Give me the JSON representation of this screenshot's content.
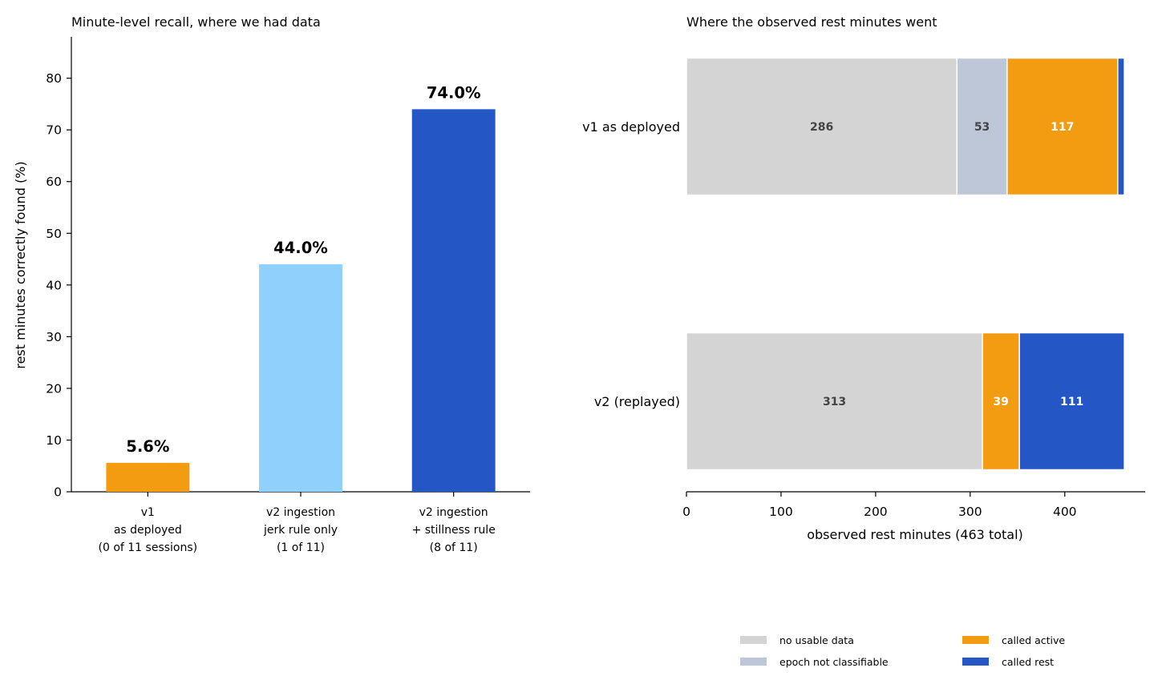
{
  "chart_data": [
    {
      "type": "bar",
      "title": "Minute-level recall, where we had data",
      "ylabel": "rest minutes correctly found (%)",
      "xlabel": "",
      "ylim": [
        0,
        88
      ],
      "yticks": [
        0,
        10,
        20,
        30,
        40,
        50,
        60,
        70,
        80
      ],
      "categories": [
        [
          "v1",
          "as deployed",
          "(0 of 11 sessions)"
        ],
        [
          "v2 ingestion",
          "jerk rule only",
          "(1 of 11)"
        ],
        [
          "v2 ingestion",
          "+ stillness rule",
          "(8 of 11)"
        ]
      ],
      "values": [
        5.6,
        44.0,
        74.0
      ],
      "value_labels": [
        "5.6%",
        "44.0%",
        "74.0%"
      ],
      "colors": [
        "#f39c12",
        "#8fd0fc",
        "#2457c5"
      ]
    },
    {
      "type": "bar",
      "orientation": "horizontal-stacked",
      "title": "Where the observed rest minutes went",
      "xlabel": "observed rest minutes (463 total)",
      "xlim": [
        0,
        485
      ],
      "xticks": [
        0,
        100,
        200,
        300,
        400
      ],
      "categories": [
        "v1 as deployed",
        "v2 (replayed)"
      ],
      "series": [
        {
          "name": "no usable data",
          "color": "#d4d4d4",
          "label_color": "#444444",
          "values": [
            286,
            313
          ]
        },
        {
          "name": "epoch not classifiable",
          "color": "#bdc7d8",
          "label_color": "#444444",
          "values": [
            53,
            0
          ]
        },
        {
          "name": "called active",
          "color": "#f39c12",
          "label_color": "#ffffff",
          "values": [
            117,
            39
          ]
        },
        {
          "name": "called rest",
          "color": "#2457c5",
          "label_color": "#ffffff",
          "values": [
            7,
            111
          ]
        }
      ],
      "legend_placement": "bottom"
    }
  ]
}
